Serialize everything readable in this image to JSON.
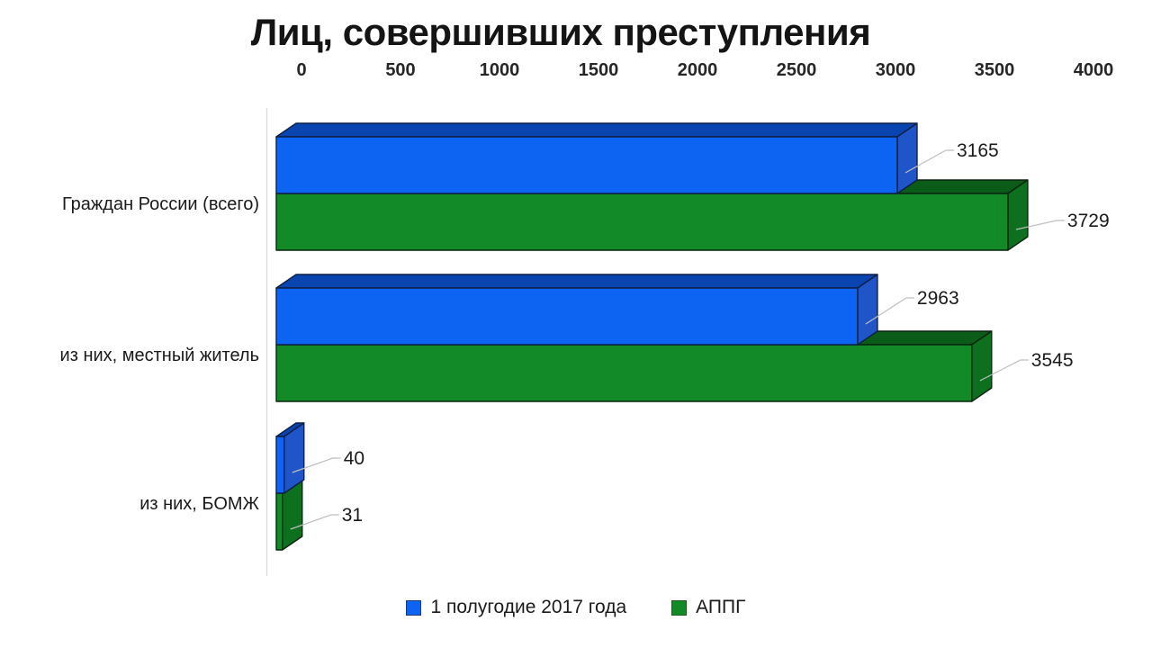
{
  "title": "Лиц, совершивших преступления",
  "legend": {
    "items": [
      {
        "label": "1 полугодие 2017 года",
        "color": "#0d64f2",
        "border": "#1a3a7a"
      },
      {
        "label": "АППГ",
        "color": "#128a28",
        "border": "#1e5b1e"
      }
    ]
  },
  "colors": {
    "leader_line": "#bfbfbf",
    "axis_line": "#d9d9d9",
    "tick_text": "#262626",
    "label_text": "#1a1a1a",
    "title_text": "#141414",
    "background": "#ffffff"
  },
  "chart_data": {
    "type": "bar",
    "orientation": "horizontal",
    "style": "3d",
    "title": "Лиц, совершивших преступления",
    "categories": [
      "Граждан России (всего)",
      "из них, местный житель",
      "из них, БОМЖ"
    ],
    "series": [
      {
        "name": "1 полугодие 2017 года",
        "values": [
          3165,
          2963,
          40
        ],
        "labels": [
          "3165",
          "2963",
          "40"
        ],
        "shades": {
          "front": "#0d64f2",
          "side": "#1f55c9",
          "top": "#0a44b0",
          "stroke": "#0e1f44"
        }
      },
      {
        "name": "АППГ",
        "values": [
          3729,
          3545,
          31
        ],
        "labels": [
          "3729",
          "3545",
          "31"
        ],
        "shades": {
          "front": "#128a28",
          "side": "#0c701e",
          "top": "#0a5c18",
          "stroke": "#0a2410"
        }
      }
    ],
    "xlim": [
      0,
      4000
    ],
    "x_ticks": [
      0,
      500,
      1000,
      1500,
      2000,
      2500,
      3000,
      3500,
      4000
    ],
    "grid": false,
    "legend_position": "bottom"
  }
}
